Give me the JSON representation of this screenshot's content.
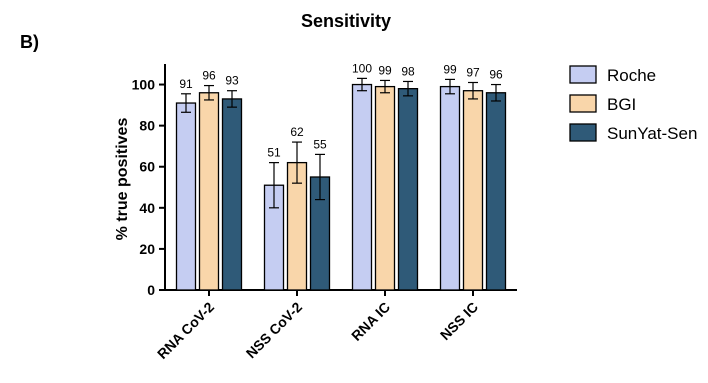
{
  "panel_label": "B)",
  "chart_data": {
    "type": "bar",
    "title": "Sensitivity",
    "ylabel": "% true positives",
    "xlabel": "",
    "ylim": [
      0,
      110
    ],
    "yticks": [
      0,
      20,
      40,
      60,
      80,
      100
    ],
    "categories": [
      "RNA CoV-2",
      "NSS CoV-2",
      "RNA IC",
      "NSS IC"
    ],
    "series": [
      {
        "name": "Roche",
        "color": "#c5cdf2",
        "values": [
          91,
          51,
          100,
          99
        ],
        "error": [
          4.5,
          11,
          3,
          3.5
        ]
      },
      {
        "name": "BGI",
        "color": "#f9d6aa",
        "values": [
          96,
          62,
          99,
          97
        ],
        "error": [
          3.5,
          10,
          3,
          4
        ]
      },
      {
        "name": "SunYat-Sen",
        "color": "#2f5a78",
        "values": [
          93,
          55,
          98,
          96
        ],
        "error": [
          4,
          11,
          3.5,
          4
        ]
      }
    ],
    "data_labels": [
      "91",
      "96",
      "93",
      "51",
      "62",
      "55",
      "100",
      "99",
      "98",
      "99",
      "97",
      "96"
    ],
    "legend_position": "right",
    "grid": false
  }
}
